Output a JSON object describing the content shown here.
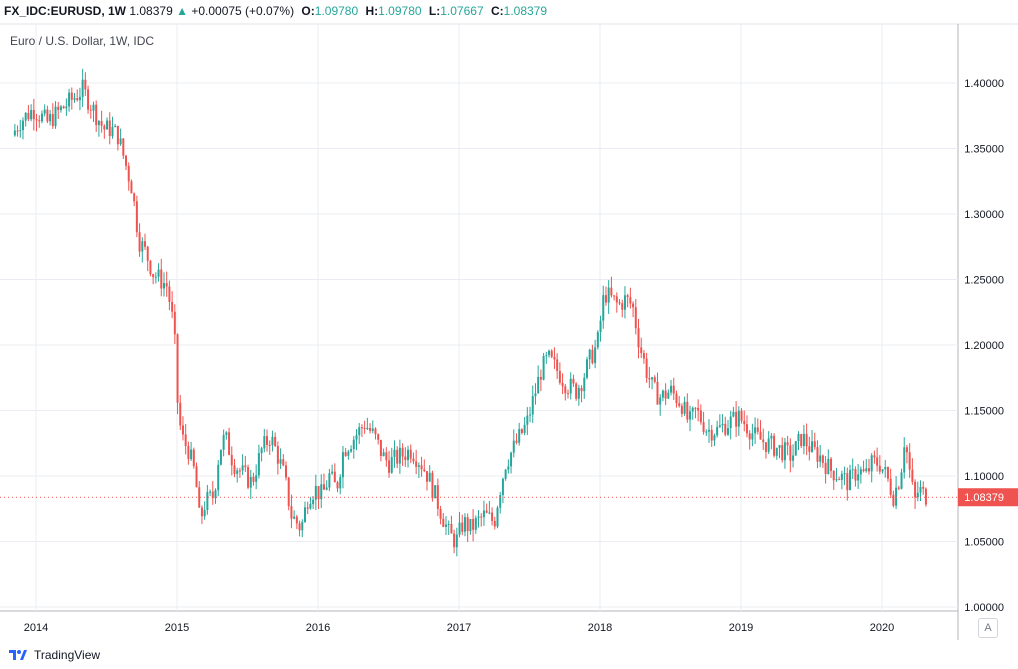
{
  "header": {
    "symbol": "FX_IDC:EURUSD, 1W",
    "last": "1.08379",
    "change_arrow": "▲",
    "change": "+0.00075 (+0.07%)",
    "open_label": "O:",
    "open": "1.09780",
    "high_label": "H:",
    "high": "1.09780",
    "low_label": "L:",
    "low": "1.07667",
    "close_label": "C:",
    "close": "1.08379"
  },
  "subtitle": "Euro / U.S. Dollar, 1W, IDC",
  "footer": {
    "brand": "TradingView"
  },
  "scale_button": "A",
  "colors": {
    "up": "#26a69a",
    "down": "#ef5350",
    "grid": "#e9ecf2",
    "last_price_bg": "#ef5350"
  },
  "chart_data": {
    "type": "candlestick",
    "title": "Euro / U.S. Dollar, 1W, IDC",
    "y_range": [
      1.0,
      1.44
    ],
    "y_ticks": [
      "1.40000",
      "1.35000",
      "1.30000",
      "1.25000",
      "1.20000",
      "1.15000",
      "1.10000",
      "1.05000",
      "1.00000"
    ],
    "x_range": [
      2013.85,
      2020.45
    ],
    "x_ticks": [
      "2014",
      "2015",
      "2016",
      "2017",
      "2018",
      "2019",
      "2020"
    ],
    "last_price": "1.08379",
    "last_price_value": 1.08379,
    "series": [
      [
        2013.85,
        1.36
      ],
      [
        2013.9,
        1.37
      ],
      [
        2013.95,
        1.375
      ],
      [
        2014.0,
        1.38
      ],
      [
        2014.1,
        1.37
      ],
      [
        2014.2,
        1.38
      ],
      [
        2014.3,
        1.39
      ],
      [
        2014.35,
        1.395
      ],
      [
        2014.4,
        1.385
      ],
      [
        2014.45,
        1.375
      ],
      [
        2014.5,
        1.365
      ],
      [
        2014.55,
        1.365
      ],
      [
        2014.6,
        1.36
      ],
      [
        2014.65,
        1.34
      ],
      [
        2014.7,
        1.32
      ],
      [
        2014.75,
        1.28
      ],
      [
        2014.8,
        1.27
      ],
      [
        2014.85,
        1.255
      ],
      [
        2014.9,
        1.25
      ],
      [
        2014.95,
        1.245
      ],
      [
        2015.0,
        1.21
      ],
      [
        2015.02,
        1.16
      ],
      [
        2015.05,
        1.13
      ],
      [
        2015.1,
        1.12
      ],
      [
        2015.15,
        1.1
      ],
      [
        2015.18,
        1.065
      ],
      [
        2015.22,
        1.08
      ],
      [
        2015.28,
        1.085
      ],
      [
        2015.32,
        1.12
      ],
      [
        2015.36,
        1.13
      ],
      [
        2015.42,
        1.11
      ],
      [
        2015.5,
        1.1
      ],
      [
        2015.55,
        1.095
      ],
      [
        2015.62,
        1.12
      ],
      [
        2015.68,
        1.13
      ],
      [
        2015.72,
        1.12
      ],
      [
        2015.78,
        1.1
      ],
      [
        2015.83,
        1.07
      ],
      [
        2015.9,
        1.06
      ],
      [
        2015.95,
        1.085
      ],
      [
        2016.0,
        1.09
      ],
      [
        2016.05,
        1.085
      ],
      [
        2016.1,
        1.1
      ],
      [
        2016.15,
        1.09
      ],
      [
        2016.2,
        1.12
      ],
      [
        2016.28,
        1.13
      ],
      [
        2016.35,
        1.14
      ],
      [
        2016.42,
        1.13
      ],
      [
        2016.48,
        1.115
      ],
      [
        2016.52,
        1.11
      ],
      [
        2016.6,
        1.115
      ],
      [
        2016.68,
        1.12
      ],
      [
        2016.75,
        1.11
      ],
      [
        2016.8,
        1.1
      ],
      [
        2016.85,
        1.085
      ],
      [
        2016.9,
        1.07
      ],
      [
        2016.95,
        1.055
      ],
      [
        2017.0,
        1.05
      ],
      [
        2017.05,
        1.065
      ],
      [
        2017.1,
        1.06
      ],
      [
        2017.15,
        1.065
      ],
      [
        2017.2,
        1.07
      ],
      [
        2017.27,
        1.065
      ],
      [
        2017.3,
        1.085
      ],
      [
        2017.35,
        1.11
      ],
      [
        2017.4,
        1.12
      ],
      [
        2017.45,
        1.13
      ],
      [
        2017.5,
        1.14
      ],
      [
        2017.55,
        1.16
      ],
      [
        2017.6,
        1.18
      ],
      [
        2017.65,
        1.19
      ],
      [
        2017.72,
        1.18
      ],
      [
        2017.78,
        1.17
      ],
      [
        2017.85,
        1.165
      ],
      [
        2017.9,
        1.175
      ],
      [
        2017.95,
        1.19
      ],
      [
        2018.0,
        1.2
      ],
      [
        2018.05,
        1.24
      ],
      [
        2018.1,
        1.235
      ],
      [
        2018.15,
        1.23
      ],
      [
        2018.2,
        1.235
      ],
      [
        2018.25,
        1.23
      ],
      [
        2018.3,
        1.2
      ],
      [
        2018.35,
        1.18
      ],
      [
        2018.4,
        1.165
      ],
      [
        2018.45,
        1.16
      ],
      [
        2018.52,
        1.165
      ],
      [
        2018.6,
        1.155
      ],
      [
        2018.65,
        1.14
      ],
      [
        2018.7,
        1.15
      ],
      [
        2018.78,
        1.135
      ],
      [
        2018.85,
        1.135
      ],
      [
        2018.92,
        1.14
      ],
      [
        2019.0,
        1.145
      ],
      [
        2019.05,
        1.14
      ],
      [
        2019.12,
        1.13
      ],
      [
        2019.2,
        1.125
      ],
      [
        2019.3,
        1.12
      ],
      [
        2019.38,
        1.115
      ],
      [
        2019.45,
        1.13
      ],
      [
        2019.52,
        1.12
      ],
      [
        2019.58,
        1.115
      ],
      [
        2019.65,
        1.105
      ],
      [
        2019.72,
        1.1
      ],
      [
        2019.78,
        1.095
      ],
      [
        2019.85,
        1.105
      ],
      [
        2019.9,
        1.1
      ],
      [
        2019.95,
        1.11
      ],
      [
        2020.0,
        1.11
      ],
      [
        2020.05,
        1.1
      ],
      [
        2020.1,
        1.085
      ],
      [
        2020.15,
        1.1
      ],
      [
        2020.18,
        1.13
      ],
      [
        2020.22,
        1.1
      ],
      [
        2020.25,
        1.08
      ],
      [
        2020.28,
        1.09
      ],
      [
        2020.32,
        1.085
      ]
    ]
  }
}
